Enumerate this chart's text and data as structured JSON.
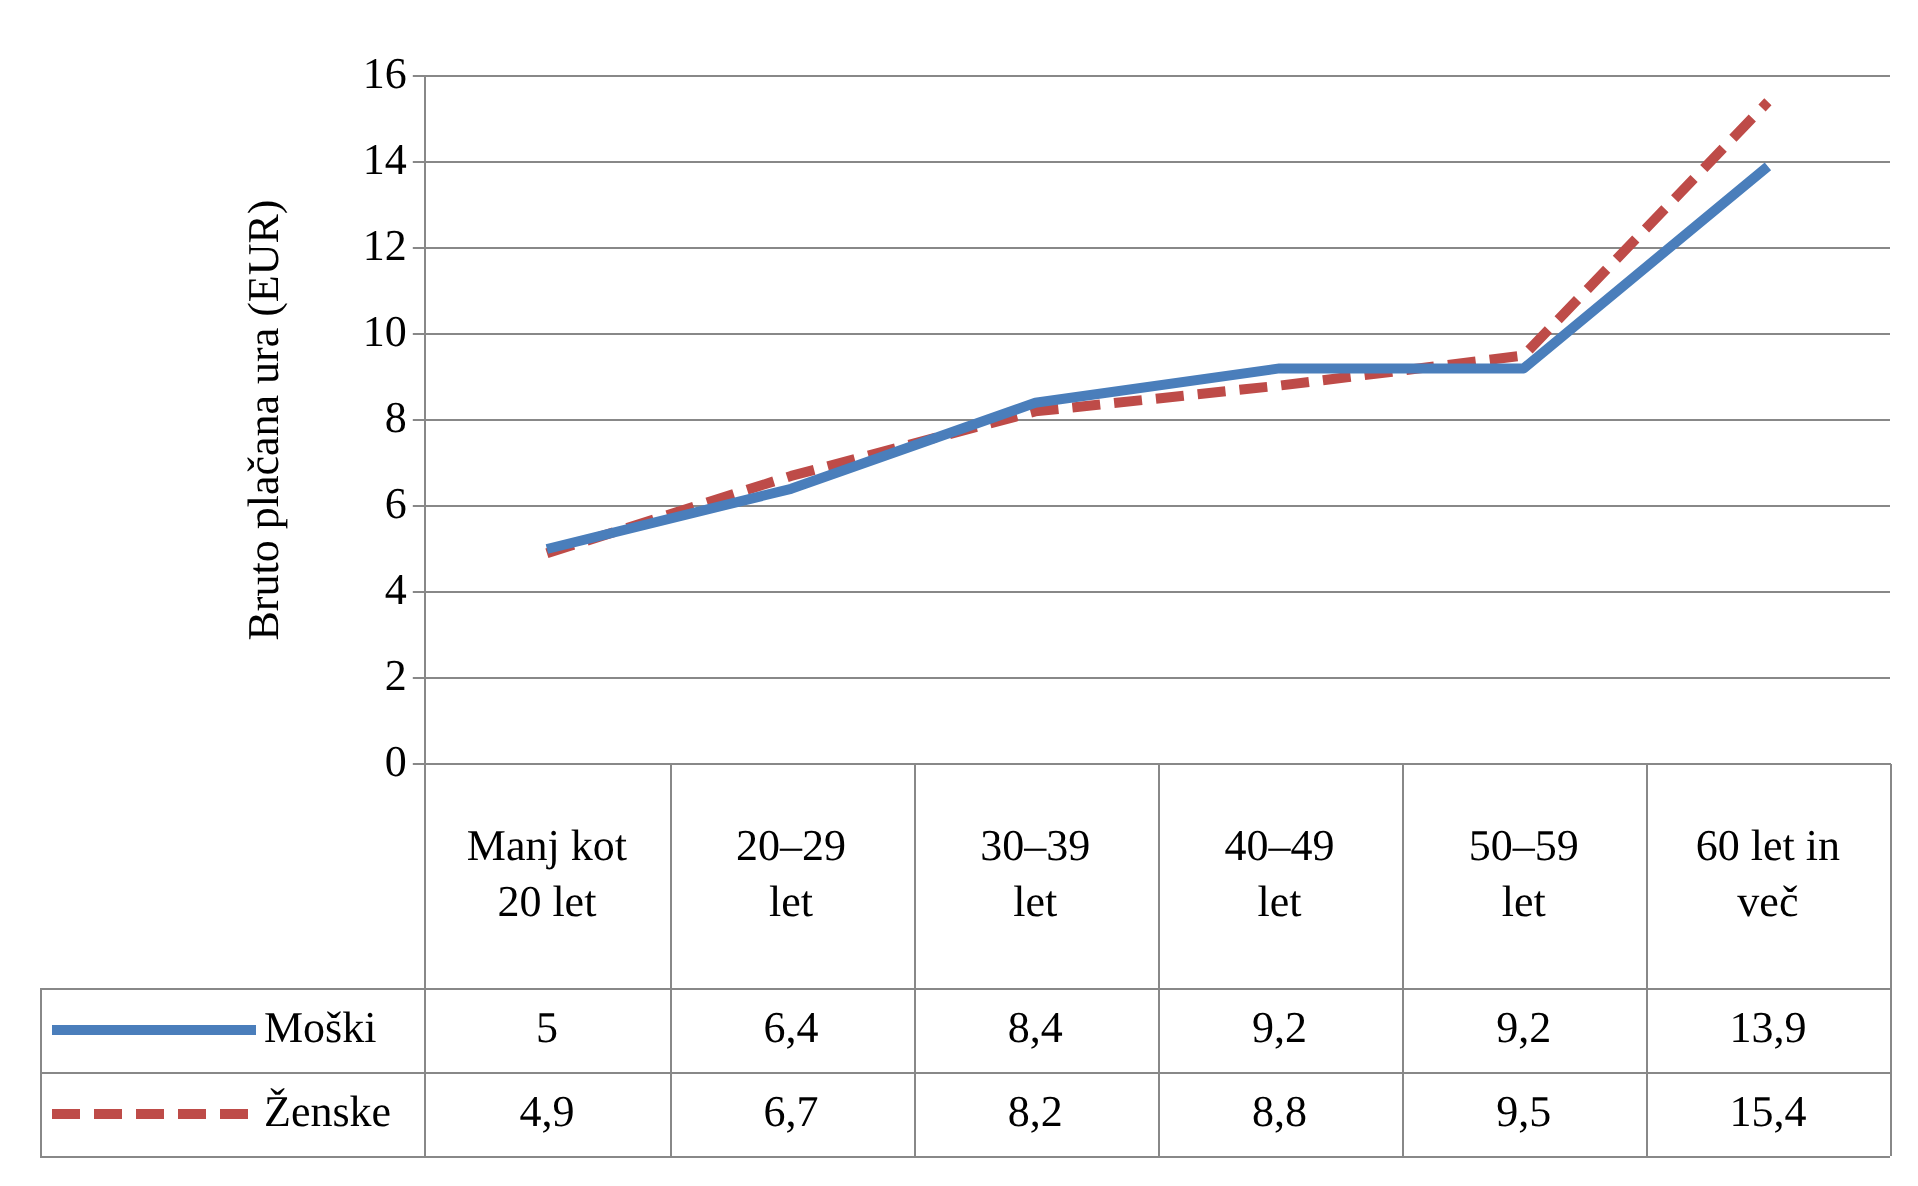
{
  "chart_data": {
    "type": "line",
    "ylabel": "Bruto plačana ura (EUR)",
    "categories": [
      "Manj kot 20 let",
      "20–29 let",
      "30–39 let",
      "40–49 let",
      "50–59 let",
      "60 let in več"
    ],
    "series": [
      {
        "name": "Moški",
        "color": "#4a7ebb",
        "line_style": "solid",
        "values": [
          5,
          6.4,
          8.4,
          9.2,
          9.2,
          13.9
        ],
        "value_labels": [
          "5",
          "6,4",
          "8,4",
          "9,2",
          "9,2",
          "13,9"
        ]
      },
      {
        "name": "Ženske",
        "color": "#be4b48",
        "line_style": "dashed",
        "values": [
          4.9,
          6.7,
          8.2,
          8.8,
          9.5,
          15.4
        ],
        "value_labels": [
          "4,9",
          "6,7",
          "8,2",
          "8,8",
          "9,5",
          "15,4"
        ]
      }
    ],
    "ylim": [
      0,
      16
    ],
    "yticks": [
      0,
      2,
      4,
      6,
      8,
      10,
      12,
      14,
      16
    ],
    "grid": "y",
    "legend": "bottom"
  }
}
